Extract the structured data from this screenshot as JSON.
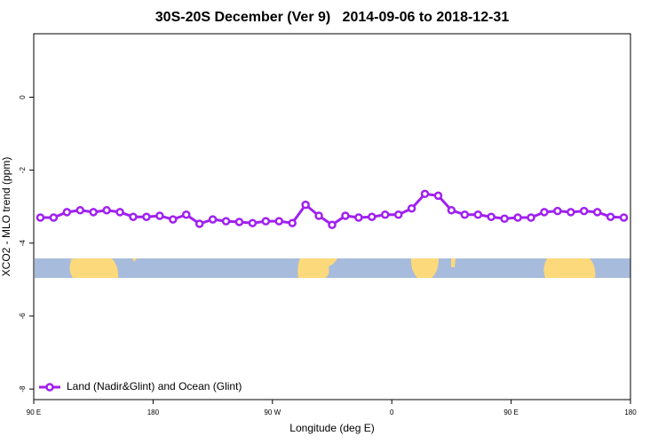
{
  "chart_data": {
    "type": "line",
    "title": "30S-20S December (Ver 9)   2014-09-06 to 2018-12-31",
    "x_label": "Longitude (deg E)",
    "y_label": "XCO2 - MLO trend (ppm)",
    "x": [
      95,
      105,
      115,
      125,
      135,
      145,
      155,
      165,
      175,
      185,
      195,
      205,
      215,
      225,
      235,
      245,
      255,
      265,
      275,
      285,
      295,
      305,
      315,
      325,
      335,
      345,
      355,
      365,
      375,
      385,
      395,
      405,
      415,
      425,
      435,
      445,
      455,
      465,
      475,
      485,
      495,
      505,
      515,
      525,
      535
    ],
    "series": [
      {
        "name": "Land (Nadir&Glint) and Ocean (Glint)",
        "color": "#a020f0",
        "values": [
          -3.3,
          -3.3,
          -3.15,
          -3.1,
          -3.15,
          -3.1,
          -3.15,
          -3.28,
          -3.28,
          -3.25,
          -3.35,
          -3.22,
          -3.47,
          -3.35,
          -3.4,
          -3.42,
          -3.45,
          -3.4,
          -3.4,
          -3.45,
          -2.95,
          -3.25,
          -3.5,
          -3.25,
          -3.3,
          -3.28,
          -3.22,
          -3.22,
          -3.05,
          -2.65,
          -2.7,
          -3.1,
          -3.22,
          -3.22,
          -3.28,
          -3.33,
          -3.3,
          -3.3,
          -3.15,
          -3.12,
          -3.15,
          -3.12,
          -3.15,
          -3.28,
          -3.3
        ]
      }
    ],
    "xlim": [
      90,
      540
    ],
    "ylim": [
      -8.29,
      1.74
    ],
    "xticks": [
      {
        "value": 90,
        "label": "90 E"
      },
      180,
      {
        "value": 270,
        "label": "90 W"
      },
      {
        "value": 360,
        "label": "0"
      },
      {
        "value": 450,
        "label": "90 E"
      },
      {
        "value": 540,
        "label": "180"
      }
    ],
    "yticks": [
      0,
      -2,
      -4,
      -6,
      -8
    ],
    "legend": "bottom-left"
  }
}
